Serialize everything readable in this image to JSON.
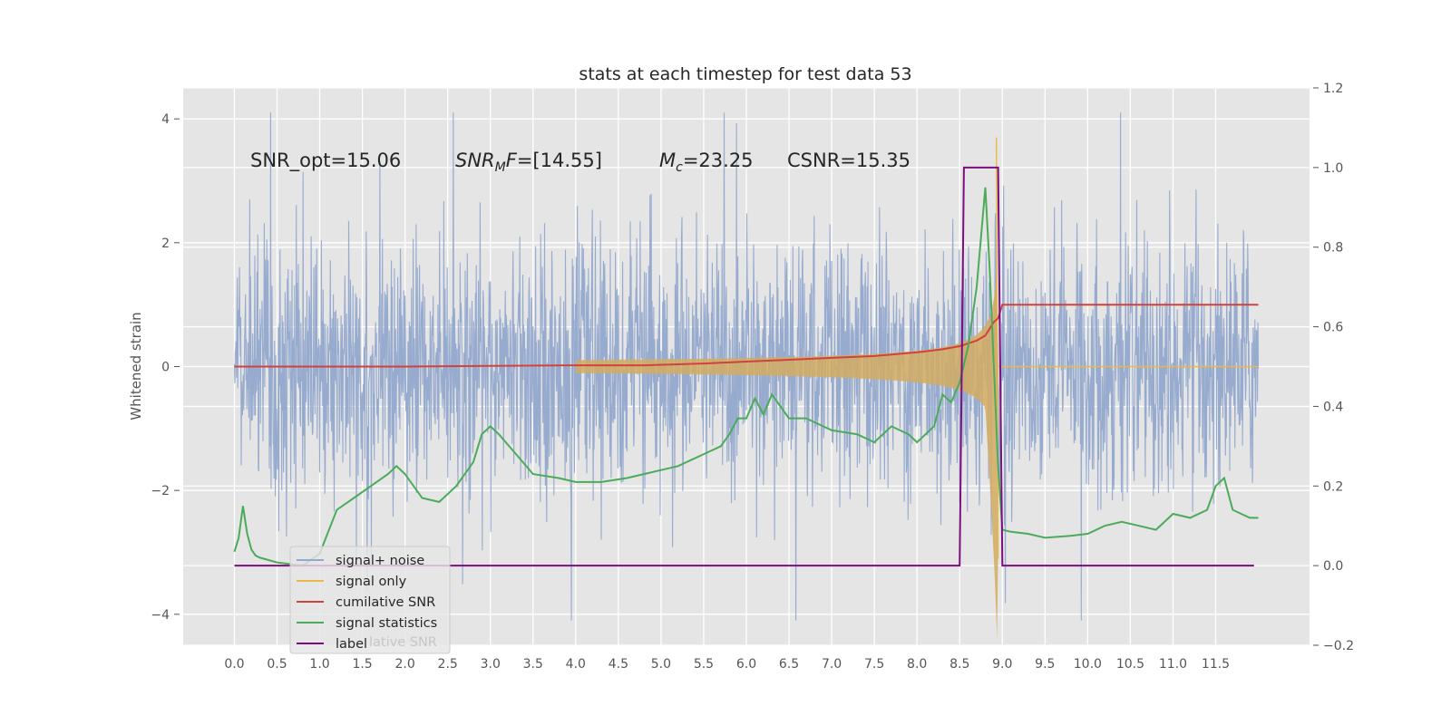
{
  "chart_data": {
    "type": "line",
    "title": "stats at each timestep for test data 53",
    "ylabel": "Whitened strain",
    "xlabel": "",
    "xlim": [
      -0.6,
      12.6
    ],
    "ylim": [
      -4.5,
      4.5
    ],
    "y2lim": [
      -0.2,
      1.2
    ],
    "x_ticks": [
      "0.0",
      "0.5",
      "1.0",
      "1.5",
      "2.0",
      "2.5",
      "3.0",
      "3.5",
      "4.0",
      "4.5",
      "5.0",
      "5.5",
      "6.0",
      "6.5",
      "7.0",
      "7.5",
      "8.0",
      "8.5",
      "9.0",
      "9.5",
      "10.0",
      "10.5",
      "11.0",
      "11.5"
    ],
    "y_ticks": [
      "4",
      "2",
      "0",
      "−2",
      "−4"
    ],
    "y2_ticks": [
      "1.2",
      "1.0",
      "0.8",
      "0.6",
      "0.4",
      "0.2",
      "0.0",
      "−0.2"
    ],
    "annotations": {
      "snr_opt": "SNR_opt=15.06",
      "snr_mf_main": "SNR",
      "snr_mf_sub": "M",
      "snr_mf_rest": "F",
      "snr_mf_value": "=[14.55]",
      "mc_main": "M",
      "mc_sub": "c",
      "mc_value": "=23.25",
      "csnr": "CSNR=15.35"
    },
    "legend": {
      "location": "lower left",
      "entries": [
        "signal+ noise",
        "signal only",
        "cumilative SNR",
        "signal statistics",
        "label"
      ],
      "ghost_text": "lative SNR"
    },
    "colors": {
      "signal_noise": "#92a8cd",
      "signal_only": "#e8b94a",
      "signal_band": "#d2ab62",
      "cumulative_snr": "#d1423d",
      "signal_statistics": "#4cab5a",
      "label": "#7c0e80",
      "axes_bg": "#e5e5e5",
      "grid": "#ffffff"
    },
    "series": [
      {
        "name": "signal+ noise",
        "axis": "left",
        "style": "noise band, approx amplitude 2 with spikes to about ±4",
        "x_range": [
          0.0,
          12.0
        ]
      },
      {
        "name": "signal only",
        "axis": "left",
        "style": "chirp growing in amplitude toward merger at ~8.95",
        "x_range": [
          0.0,
          12.0
        ]
      },
      {
        "name": "cumilative SNR",
        "axis": "left",
        "x": [
          0.0,
          1.0,
          2.0,
          3.0,
          4.0,
          4.8,
          5.5,
          6.0,
          6.5,
          7.0,
          7.5,
          8.0,
          8.3,
          8.5,
          8.7,
          8.8,
          8.9,
          8.95,
          9.0,
          12.0
        ],
        "y": [
          0.0,
          0.0,
          0.0,
          0.01,
          0.02,
          0.02,
          0.05,
          0.08,
          0.11,
          0.14,
          0.17,
          0.23,
          0.28,
          0.33,
          0.42,
          0.5,
          0.72,
          0.78,
          1.0,
          1.0
        ]
      },
      {
        "name": "signal statistics",
        "axis": "right",
        "x": [
          0.0,
          0.05,
          0.1,
          0.15,
          0.2,
          0.25,
          0.3,
          0.5,
          0.8,
          1.0,
          1.2,
          1.4,
          1.6,
          1.8,
          1.9,
          2.0,
          2.2,
          2.4,
          2.6,
          2.8,
          2.9,
          3.0,
          3.1,
          3.3,
          3.5,
          3.8,
          4.0,
          4.3,
          4.6,
          4.8,
          5.0,
          5.2,
          5.5,
          5.7,
          5.8,
          5.9,
          6.0,
          6.1,
          6.2,
          6.3,
          6.5,
          6.7,
          7.0,
          7.3,
          7.5,
          7.7,
          7.9,
          8.0,
          8.1,
          8.2,
          8.3,
          8.4,
          8.5,
          8.6,
          8.7,
          8.8,
          8.85,
          8.9,
          8.95,
          9.0,
          9.1,
          9.3,
          9.5,
          9.8,
          10.0,
          10.2,
          10.4,
          10.6,
          10.8,
          11.0,
          11.2,
          11.4,
          11.5,
          11.6,
          11.7,
          11.9,
          12.0
        ],
        "y": [
          0.035,
          0.07,
          0.15,
          0.08,
          0.04,
          0.025,
          0.02,
          0.008,
          0.0,
          0.03,
          0.14,
          0.17,
          0.2,
          0.23,
          0.25,
          0.23,
          0.17,
          0.16,
          0.2,
          0.26,
          0.33,
          0.35,
          0.33,
          0.28,
          0.23,
          0.22,
          0.21,
          0.21,
          0.22,
          0.23,
          0.24,
          0.25,
          0.28,
          0.3,
          0.33,
          0.37,
          0.37,
          0.42,
          0.38,
          0.43,
          0.37,
          0.37,
          0.34,
          0.33,
          0.31,
          0.35,
          0.33,
          0.31,
          0.33,
          0.35,
          0.43,
          0.41,
          0.46,
          0.55,
          0.7,
          0.95,
          0.75,
          0.5,
          0.25,
          0.09,
          0.085,
          0.08,
          0.07,
          0.075,
          0.08,
          0.1,
          0.11,
          0.1,
          0.09,
          0.13,
          0.12,
          0.14,
          0.2,
          0.22,
          0.14,
          0.12,
          0.12
        ]
      },
      {
        "name": "label",
        "axis": "right",
        "x": [
          0.0,
          8.5,
          8.55,
          8.95,
          9.0,
          11.95
        ],
        "y": [
          0.0,
          0.0,
          1.0,
          1.0,
          0.0,
          0.0
        ]
      }
    ]
  }
}
